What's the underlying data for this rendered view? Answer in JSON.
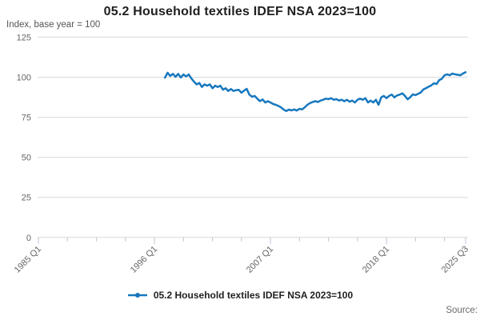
{
  "title": "05.2 Household textiles IDEF NSA 2023=100",
  "subtitle": "Index, base year = 100",
  "source_label": "Source:",
  "legend": {
    "label": "05.2 Household textiles IDEF NSA 2023=100",
    "marker": "line-with-dot-marker"
  },
  "colors": {
    "line": "#1778be",
    "grid": "#d9d9d9",
    "tick": "#c3cede",
    "muted_text": "#666666",
    "title_text": "#1f1f1f"
  },
  "chart_data": {
    "type": "line",
    "title": "05.2 Household textiles IDEF NSA 2023=100",
    "ylabel": "Index, base year = 100",
    "ylim": [
      0,
      125
    ],
    "y_ticks": [
      0,
      25,
      50,
      75,
      100,
      125
    ],
    "grid": "horizontal",
    "legend_position": "bottom-center",
    "axis_start": "1985 Q1",
    "axis_end": "2025 Q3",
    "x_tick_labels": [
      "1985 Q1",
      "1996 Q1",
      "2007 Q1",
      "2018 Q1",
      "2025 Q3"
    ],
    "frequency": "quarterly",
    "series": [
      {
        "name": "05.2 Household textiles IDEF NSA 2023=100",
        "start": "1997 Q1",
        "end": "2025 Q3",
        "values": [
          99.7,
          102.8,
          100.8,
          102.1,
          100.2,
          102.1,
          99.8,
          101.7,
          100.5,
          101.7,
          99.2,
          97.2,
          95.5,
          96.4,
          93.9,
          95.5,
          94.7,
          95.5,
          93.1,
          94.7,
          93.9,
          94.7,
          92.2,
          93.1,
          91.4,
          92.6,
          91.4,
          91.9,
          92.1,
          90.3,
          91.6,
          92.7,
          89.1,
          87.8,
          88.3,
          86.6,
          85.0,
          86.1,
          84.2,
          85.0,
          84.2,
          83.3,
          82.8,
          82.1,
          81.2,
          79.8,
          78.9,
          79.8,
          79.3,
          79.9,
          79.2,
          80.3,
          79.9,
          81.2,
          82.8,
          83.8,
          84.5,
          85.0,
          84.5,
          85.4,
          85.9,
          86.6,
          86.3,
          86.9,
          85.9,
          86.3,
          85.4,
          85.9,
          85.0,
          85.9,
          84.7,
          85.4,
          84.2,
          85.9,
          86.6,
          85.9,
          86.9,
          84.2,
          85.4,
          84.2,
          85.9,
          82.8,
          87.4,
          88.3,
          86.9,
          88.3,
          89.1,
          87.4,
          88.6,
          89.1,
          89.9,
          88.3,
          86.2,
          87.5,
          89.3,
          88.8,
          89.6,
          90.5,
          92.4,
          93.2,
          94.1,
          94.9,
          96.2,
          95.7,
          98.2,
          99.0,
          101.2,
          101.8,
          101.2,
          102.3,
          101.8,
          101.5,
          101.2,
          102.3,
          103.1
        ]
      }
    ]
  }
}
